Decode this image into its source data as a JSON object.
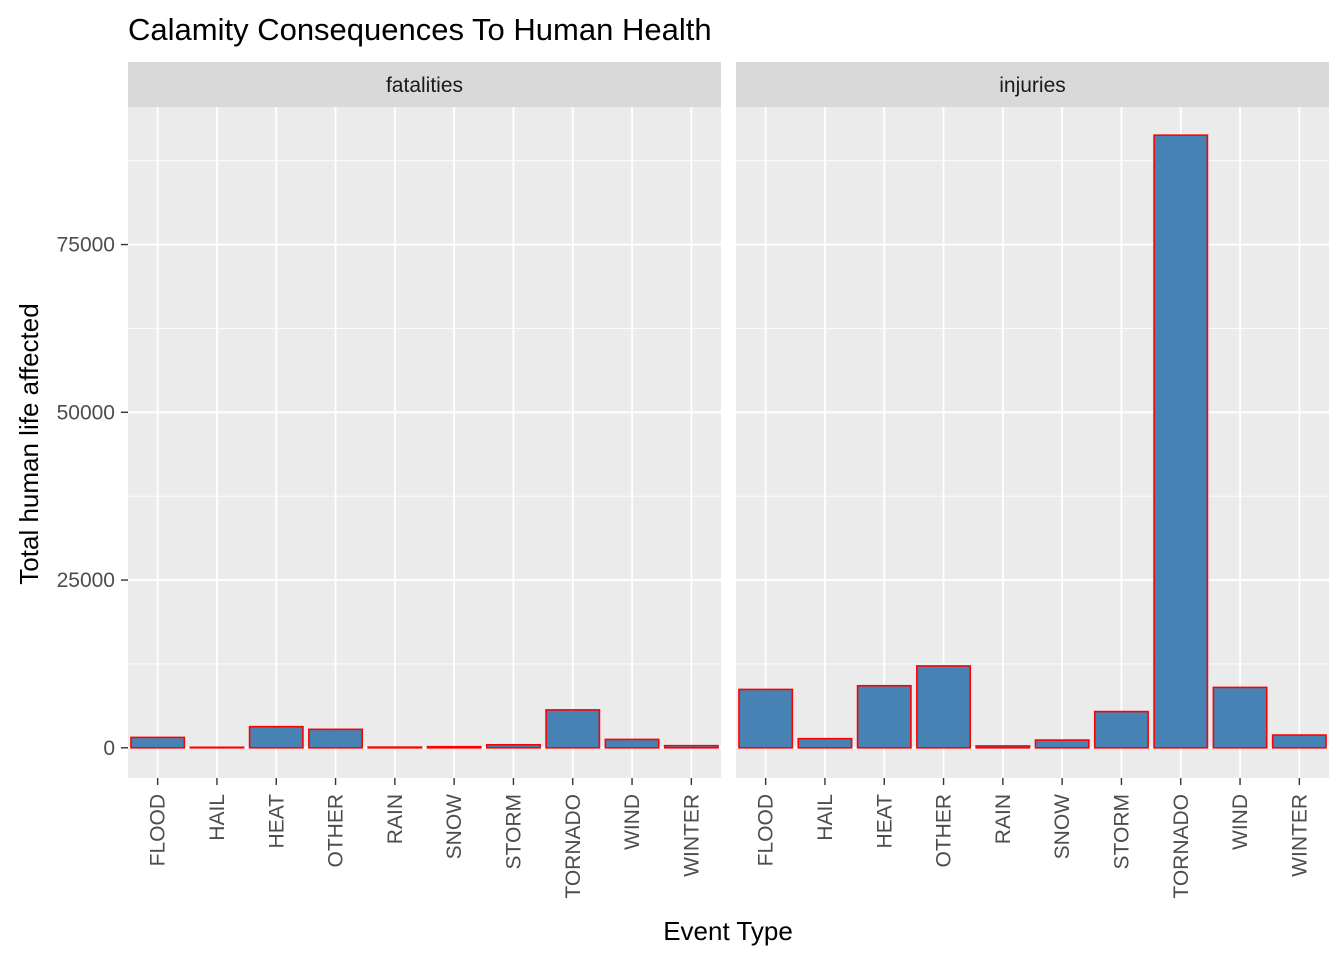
{
  "chart_data": {
    "type": "bar",
    "title": "Calamity Consequences To Human Health",
    "xlabel": "Event Type",
    "ylabel": "Total human life affected",
    "categories": [
      "FLOOD",
      "HAIL",
      "HEAT",
      "OTHER",
      "RAIN",
      "SNOW",
      "STORM",
      "TORNADO",
      "WIND",
      "WINTER"
    ],
    "y_ticks": [
      0,
      25000,
      50000,
      75000
    ],
    "ylim": [
      -4500,
      95500
    ],
    "grid": true,
    "facets": [
      {
        "label": "fatalities",
        "values": [
          1550,
          15,
          3150,
          2750,
          100,
          160,
          450,
          5650,
          1250,
          320
        ]
      },
      {
        "label": "injuries",
        "values": [
          8700,
          1360,
          9250,
          12200,
          280,
          1150,
          5400,
          91300,
          9000,
          1900
        ]
      }
    ],
    "colors": {
      "bar_fill": "#4682B4",
      "bar_outline": "#FF0000",
      "panel_bg": "#EBEBEB",
      "strip_bg": "#D9D9D9",
      "grid": "#FFFFFF"
    }
  }
}
